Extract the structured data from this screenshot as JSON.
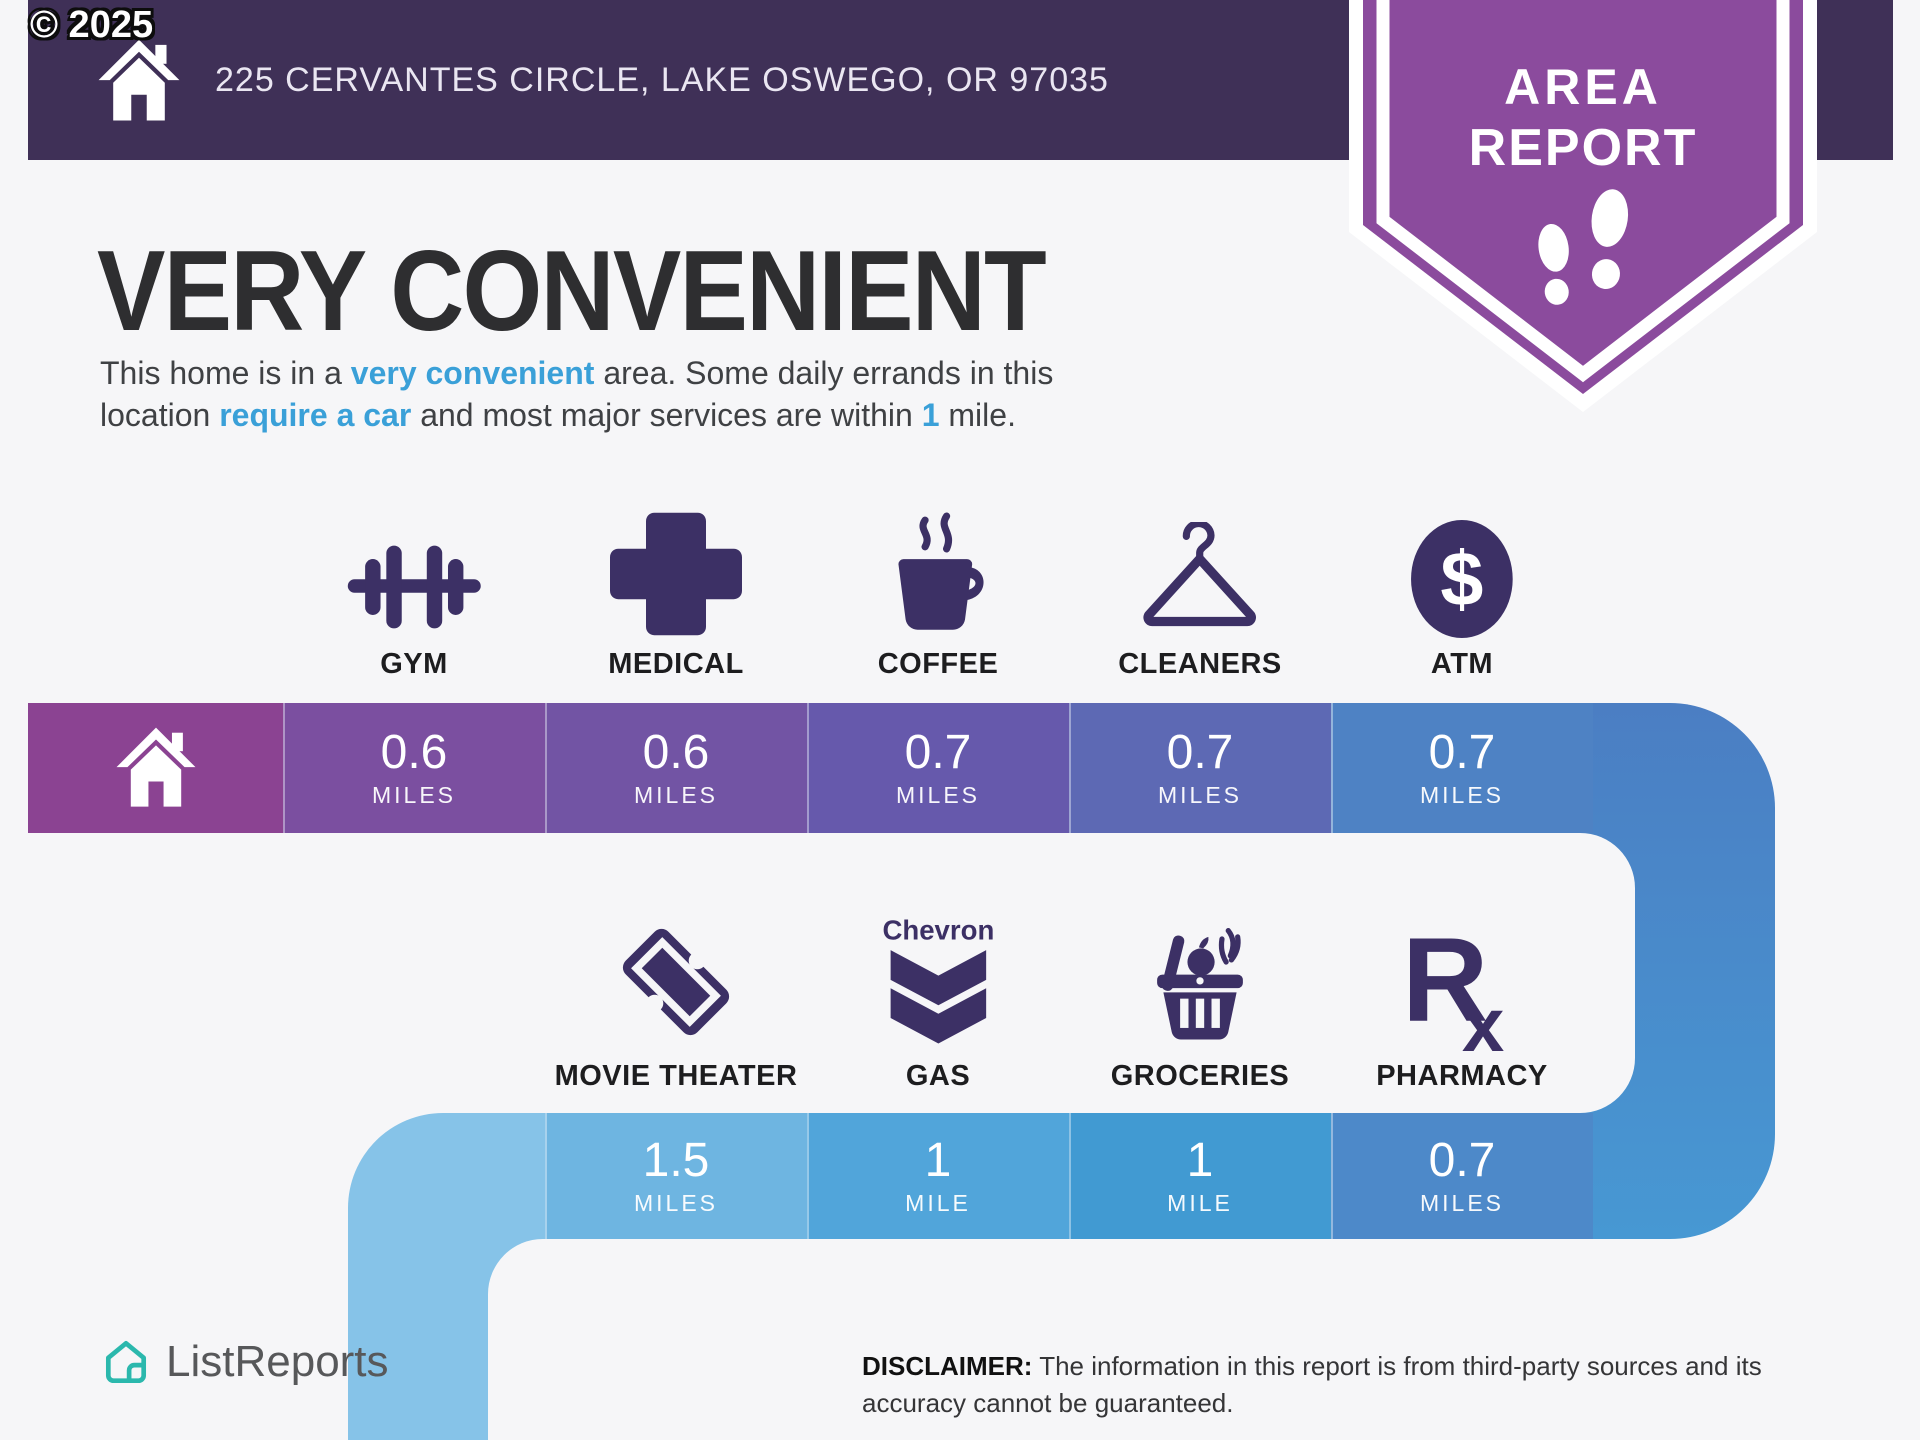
{
  "meta": {
    "copyright": "© 2025"
  },
  "header": {
    "address": "225 CERVANTES CIRCLE, LAKE OSWEGO, OR 97035",
    "home_icon": "home-icon",
    "badge_line1": "AREA",
    "badge_line2": "REPORT",
    "badge_icon": "footprints-icon"
  },
  "hero": {
    "title": "VERY CONVENIENT",
    "lines": [
      [
        {
          "t": "This home is in a "
        },
        {
          "t": "very convenient",
          "em": true
        },
        {
          "t": " area. Some daily errands in this"
        }
      ],
      [
        {
          "t": "location "
        },
        {
          "t": "require a car",
          "em": true
        },
        {
          "t": " and most major services are within "
        },
        {
          "t": "1",
          "em": true
        },
        {
          "t": " mile."
        }
      ]
    ]
  },
  "origin": {
    "icon": "home-icon"
  },
  "rows": [
    {
      "name": "row1",
      "items": [
        {
          "label": "GYM",
          "icon": "dumbbell-icon",
          "value": "0.6",
          "unit": "MILES"
        },
        {
          "label": "MEDICAL",
          "icon": "medical-cross-icon",
          "value": "0.6",
          "unit": "MILES"
        },
        {
          "label": "COFFEE",
          "icon": "coffee-cup-icon",
          "value": "0.7",
          "unit": "MILES"
        },
        {
          "label": "CLEANERS",
          "icon": "hanger-icon",
          "value": "0.7",
          "unit": "MILES"
        },
        {
          "label": "ATM",
          "icon": "dollar-circle-icon",
          "value": "0.7",
          "unit": "MILES"
        }
      ]
    },
    {
      "name": "row2",
      "items": [
        {
          "label": "MOVIE THEATER",
          "icon": "ticket-icon",
          "value": "1.5",
          "unit": "MILES"
        },
        {
          "label": "GAS",
          "icon": "chevron-gas-icon",
          "brand": "Chevron",
          "value": "1",
          "unit": "MILE"
        },
        {
          "label": "GROCERIES",
          "icon": "grocery-basket-icon",
          "value": "1",
          "unit": "MILE"
        },
        {
          "label": "PHARMACY",
          "icon": "rx-icon",
          "value": "0.7",
          "unit": "MILES"
        }
      ]
    }
  ],
  "footer": {
    "logo_icon": "listreports-icon",
    "logo_text": "ListReports",
    "disclaimer": [
      {
        "t": "DISCLAIMER:",
        "b": true
      },
      {
        "t": " The information in this report is from third-party sources and its accuracy cannot be guaranteed."
      }
    ]
  },
  "colors": {
    "topbar": "#3f3057",
    "badge": "#8b4b9d",
    "icon": "#3c3065",
    "accent_text": "#3aa0d8",
    "logo_teal": "#2bb8ad",
    "home_cell": "#8b4392",
    "band1_cells": [
      "#7b4fa0",
      "#7254a4",
      "#6659ac",
      "#5d69b4",
      "#4e82c4"
    ],
    "band2_cells": [
      "#6eb5e1",
      "#51a5da",
      "#419ad2",
      "#4d89c9"
    ],
    "corner_right_top": "#4b7ec3",
    "corner_right_bottom": "#4798d3",
    "left_stripe": "#86c3e8",
    "background": "#f6f6f8"
  }
}
